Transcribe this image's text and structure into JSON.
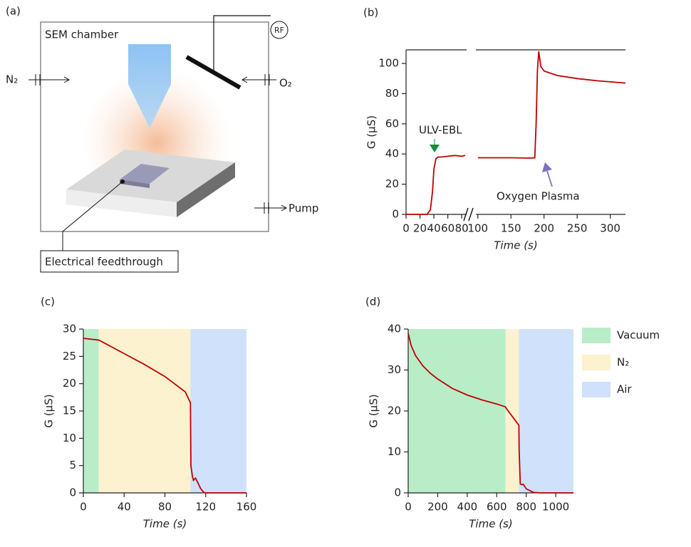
{
  "diagram": {
    "panel": "(a)",
    "chamber": "SEM chamber",
    "gas_left": "N₂",
    "gas_right": "O₂",
    "rf": "RF",
    "pump": "Pump",
    "feedthrough": "Electrical feedthrough"
  },
  "chart_data": [
    {
      "type": "line",
      "panel": "(b)",
      "xlabel": "Time (s)",
      "ylabel": "G (μS)",
      "ylim": [
        0,
        109
      ],
      "yticks": [
        0,
        20,
        40,
        60,
        80,
        100
      ],
      "annotations": [
        "ULV-EBL",
        "Oxygen Plasma"
      ],
      "series": [
        {
          "color": "#c00000",
          "xlim": [
            0,
            87
          ],
          "xticks": [
            0,
            20,
            40,
            60,
            80
          ],
          "x": [
            0,
            30,
            35,
            38,
            40,
            43,
            46,
            50,
            60,
            70,
            80,
            85
          ],
          "values": [
            0,
            0,
            3,
            15,
            30,
            37,
            38,
            38,
            38.5,
            39,
            38.5,
            39
          ]
        },
        {
          "color": "#c00000",
          "xlim": [
            97,
            323
          ],
          "xticks": [
            100,
            150,
            200,
            250,
            300
          ],
          "x": [
            100,
            150,
            180,
            186,
            188,
            190,
            192,
            195,
            200,
            220,
            250,
            280,
            323
          ],
          "values": [
            37.5,
            37.5,
            37.3,
            37.5,
            60,
            95,
            108,
            98,
            95,
            92,
            90,
            88.5,
            87
          ]
        }
      ]
    },
    {
      "type": "line",
      "panel": "(c)",
      "xlabel": "Time (s)",
      "ylabel": "G (μS)",
      "xlim": [
        0,
        160
      ],
      "xticks": [
        0,
        40,
        80,
        120,
        160
      ],
      "ylim": [
        0,
        30
      ],
      "yticks": [
        0,
        5,
        10,
        15,
        20,
        25,
        30
      ],
      "regions": [
        {
          "color": "#b8edc8",
          "start": 0,
          "end": 15
        },
        {
          "color": "#fdf2cf",
          "start": 15,
          "end": 105
        },
        {
          "color": "#d0e1fb",
          "start": 105,
          "end": 160
        }
      ],
      "series": [
        {
          "color": "#c00000",
          "x": [
            0,
            5,
            14,
            15,
            40,
            60,
            80,
            100,
            105,
            105.5,
            107,
            108,
            110,
            112,
            115,
            118,
            120,
            140,
            160
          ],
          "values": [
            28.3,
            28.2,
            28,
            28,
            25.5,
            23.5,
            21.3,
            18.5,
            16.5,
            5,
            3,
            2.3,
            2.7,
            2,
            0.8,
            0.1,
            0,
            0,
            0
          ]
        }
      ]
    },
    {
      "type": "line",
      "panel": "(d)",
      "xlabel": "Time (s)",
      "ylabel": "G (μS)",
      "xlim": [
        0,
        1120
      ],
      "xticks": [
        0,
        200,
        400,
        600,
        800,
        1000
      ],
      "ylim": [
        0,
        40
      ],
      "yticks": [
        0,
        10,
        20,
        30,
        40
      ],
      "regions": [
        {
          "name": "Vacuum",
          "color": "#b8edc8",
          "start": 0,
          "end": 660
        },
        {
          "name": "N₂",
          "color": "#fdf2cf",
          "start": 660,
          "end": 750
        },
        {
          "name": "Air",
          "color": "#d0e1fb",
          "start": 750,
          "end": 1120
        }
      ],
      "series": [
        {
          "color": "#c00000",
          "x": [
            0,
            20,
            50,
            100,
            150,
            200,
            300,
            400,
            500,
            600,
            660,
            661,
            750,
            752,
            760,
            770,
            780,
            800,
            850,
            900,
            1000,
            1120
          ],
          "values": [
            39,
            36,
            33.5,
            31,
            29.2,
            27.8,
            25.5,
            23.9,
            22.7,
            21.7,
            21,
            20.8,
            16.5,
            10,
            2.2,
            2,
            2.1,
            1,
            0.1,
            0,
            0,
            0
          ]
        }
      ]
    }
  ]
}
